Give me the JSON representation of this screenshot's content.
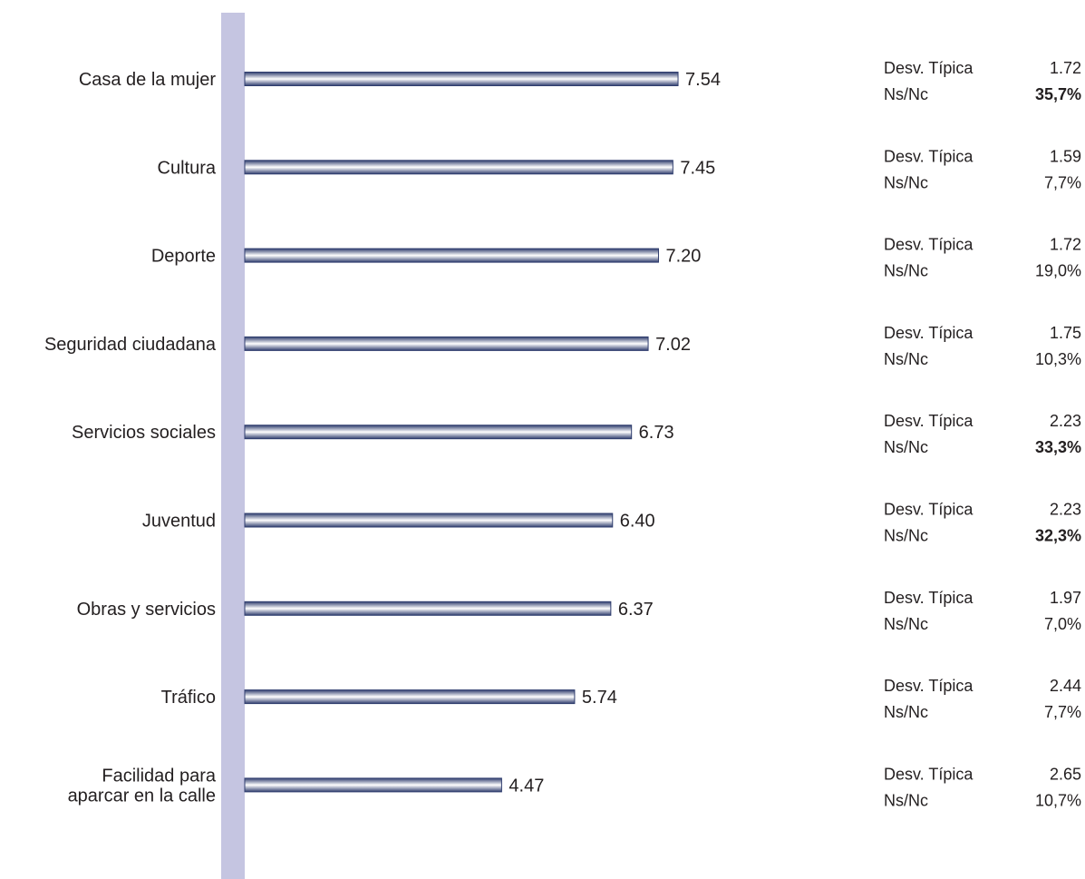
{
  "chart_data": {
    "type": "bar",
    "orientation": "horizontal",
    "title": "",
    "xlabel": "",
    "ylabel": "",
    "xlim": [
      0,
      10
    ],
    "grid": false,
    "legend": "none",
    "categories": [
      "Casa de la mujer",
      "Cultura",
      "Deporte",
      "Seguridad ciudadana",
      "Servicios sociales",
      "Juventud",
      "Obras y servicios",
      "Tráfico",
      "Facilidad para\naparcar en la calle"
    ],
    "values": [
      7.54,
      7.45,
      7.2,
      7.02,
      6.73,
      6.4,
      6.37,
      5.74,
      4.47
    ],
    "value_labels": [
      "7.54",
      "7.45",
      "7.20",
      "7.02",
      "6.73",
      "6.40",
      "6.37",
      "5.74",
      "4.47"
    ],
    "side_stats": {
      "std_label": "Desv. Típica",
      "nsnc_label": "Ns/Nc",
      "rows": [
        {
          "std": "1.72",
          "nsnc": "35,7%",
          "nsnc_bold": true
        },
        {
          "std": "1.59",
          "nsnc": "7,7%",
          "nsnc_bold": false
        },
        {
          "std": "1.72",
          "nsnc": "19,0%",
          "nsnc_bold": false
        },
        {
          "std": "1.75",
          "nsnc": "10,3%",
          "nsnc_bold": false
        },
        {
          "std": "2.23",
          "nsnc": "33,3%",
          "nsnc_bold": true
        },
        {
          "std": "2.23",
          "nsnc": "32,3%",
          "nsnc_bold": true
        },
        {
          "std": "1.97",
          "nsnc": "7,0%",
          "nsnc_bold": false
        },
        {
          "std": "2.44",
          "nsnc": "7,7%",
          "nsnc_bold": false
        },
        {
          "std": "2.65",
          "nsnc": "10,7%",
          "nsnc_bold": false
        }
      ]
    },
    "colors": {
      "axis_band": "#c5c5e1",
      "bar_dark": "#2f3d6e",
      "bar_light": "#ffffff",
      "text": "#231f20"
    }
  }
}
